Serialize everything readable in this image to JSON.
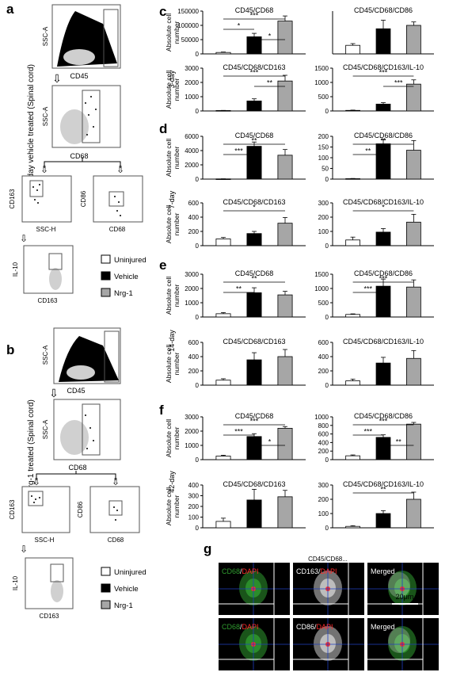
{
  "colors": {
    "uninjured": "#ffffff",
    "vehicle": "#000000",
    "nrg1": "#a6a6a6",
    "bar_stroke": "#000000",
    "green": "#2f9b2f",
    "red": "#ff2a2a",
    "crosshair": "#1f3fbf"
  },
  "panels": {
    "a": "a",
    "b": "b",
    "c": "c",
    "d": "d",
    "e": "e",
    "f": "f",
    "g": "g"
  },
  "side_labels": {
    "a": "42-day vehicle treated (Spinal cord)",
    "b": "42-day Nrg-1 treated (Spinal cord)"
  },
  "flow_labels": {
    "ssc_a": "SSC-A",
    "cd45": "CD45",
    "cd68": "CD68",
    "cd163": "CD163",
    "cd86": "CD86",
    "ssc_h": "SSC-H",
    "il10": "IL-10"
  },
  "legend": [
    {
      "name": "Uninjured",
      "color": "#ffffff"
    },
    {
      "name": "Vehicle",
      "color": "#000000"
    },
    {
      "name": "Nrg-1",
      "color": "#a6a6a6"
    }
  ],
  "row_labels": [
    "3-day",
    "7-day",
    "14-day",
    "42-day"
  ],
  "y_label": "Absolute cell number",
  "chart_data": [
    {
      "type": "bar",
      "row": "3-day",
      "title": "CD45/CD68",
      "categories": [
        "Uninjured",
        "Vehicle",
        "Nrg-1"
      ],
      "values": [
        5000,
        60000,
        115000
      ],
      "errors": [
        1500,
        12000,
        18000
      ],
      "ylim": [
        0,
        150000
      ],
      "yticks": [
        0,
        50000,
        100000,
        150000
      ],
      "sig": [
        {
          "a": 0,
          "b": 2,
          "stars": "***"
        },
        {
          "a": 0,
          "b": 1,
          "stars": "*"
        },
        {
          "a": 1,
          "b": 2,
          "stars": "*"
        }
      ]
    },
    {
      "type": "bar",
      "row": "3-day",
      "title": "CD45/CD68/CD86",
      "categories": [
        "Uninjured",
        "Vehicle",
        "Nrg-1"
      ],
      "values": [
        300,
        880,
        1000
      ],
      "errors": [
        60,
        300,
        120
      ],
      "ylim": [
        0,
        1500
      ],
      "yticks": [],
      "sig": []
    },
    {
      "type": "bar",
      "row": "3-day",
      "title": "CD45/CD68/CD163",
      "categories": [
        "Uninjured",
        "Vehicle",
        "Nrg-1"
      ],
      "values": [
        30,
        700,
        2100
      ],
      "errors": [
        10,
        150,
        400
      ],
      "ylim": [
        0,
        3000
      ],
      "yticks": [
        0,
        1000,
        2000,
        3000
      ],
      "sig": [
        {
          "a": 0,
          "b": 2,
          "stars": "***"
        },
        {
          "a": 1,
          "b": 2,
          "stars": "**"
        }
      ]
    },
    {
      "type": "bar",
      "row": "3-day",
      "title": "CD45/CD68/CD163/IL-10",
      "categories": [
        "Uninjured",
        "Vehicle",
        "Nrg-1"
      ],
      "values": [
        20,
        240,
        940
      ],
      "errors": [
        10,
        50,
        150
      ],
      "ylim": [
        0,
        1500
      ],
      "yticks": [
        0,
        500,
        1000,
        1500
      ],
      "sig": [
        {
          "a": 0,
          "b": 2,
          "stars": "***"
        },
        {
          "a": 1,
          "b": 2,
          "stars": "***"
        }
      ]
    },
    {
      "type": "bar",
      "row": "7-day",
      "title": "CD45/CD68",
      "categories": [
        "Uninjured",
        "Vehicle",
        "Nrg-1"
      ],
      "values": [
        30,
        4600,
        3350
      ],
      "errors": [
        10,
        600,
        800
      ],
      "ylim": [
        0,
        6000
      ],
      "yticks": [
        0,
        2000,
        4000,
        6000
      ],
      "sig": [
        {
          "a": 0,
          "b": 2,
          "stars": "**"
        },
        {
          "a": 0,
          "b": 1,
          "stars": "***"
        }
      ]
    },
    {
      "type": "bar",
      "row": "7-day",
      "title": "CD45/CD68/CD86",
      "categories": [
        "Uninjured",
        "Vehicle",
        "Nrg-1"
      ],
      "values": [
        2,
        165,
        135
      ],
      "errors": [
        1,
        20,
        45
      ],
      "ylim": [
        0,
        200
      ],
      "yticks": [
        0,
        50,
        100,
        150,
        200
      ],
      "sig": [
        {
          "a": 0,
          "b": 2,
          "stars": "**"
        },
        {
          "a": 0,
          "b": 1,
          "stars": "**"
        }
      ]
    },
    {
      "type": "bar",
      "row": "7-day",
      "title": "CD45/CD68/CD163",
      "categories": [
        "Uninjured",
        "Vehicle",
        "Nrg-1"
      ],
      "values": [
        95,
        170,
        315
      ],
      "errors": [
        20,
        30,
        80
      ],
      "ylim": [
        0,
        600
      ],
      "yticks": [
        0,
        200,
        400,
        600
      ],
      "sig": [
        {
          "a": 0,
          "b": 2,
          "stars": "*"
        }
      ]
    },
    {
      "type": "bar",
      "row": "7-day",
      "title": "CD45/CD68/CD163/IL-10",
      "categories": [
        "Uninjured",
        "Vehicle",
        "Nrg-1"
      ],
      "values": [
        40,
        95,
        165
      ],
      "errors": [
        20,
        25,
        55
      ],
      "ylim": [
        0,
        300
      ],
      "yticks": [
        0,
        100,
        200,
        300
      ],
      "sig": [
        {
          "a": 0,
          "b": 2,
          "stars": "*"
        }
      ]
    },
    {
      "type": "bar",
      "row": "14-day",
      "title": "CD45/CD68",
      "categories": [
        "Uninjured",
        "Vehicle",
        "Nrg-1"
      ],
      "values": [
        230,
        1700,
        1550
      ],
      "errors": [
        80,
        350,
        250
      ],
      "ylim": [
        0,
        3000
      ],
      "yticks": [
        0,
        1000,
        2000,
        3000
      ],
      "sig": [
        {
          "a": 0,
          "b": 2,
          "stars": "**"
        },
        {
          "a": 0,
          "b": 1,
          "stars": "**"
        }
      ]
    },
    {
      "type": "bar",
      "row": "14-day",
      "title": "CD45/CD68/CD86",
      "categories": [
        "Uninjured",
        "Vehicle",
        "Nrg-1"
      ],
      "values": [
        90,
        1080,
        1050
      ],
      "errors": [
        20,
        250,
        250
      ],
      "ylim": [
        0,
        1500
      ],
      "yticks": [
        0,
        500,
        1000,
        1500
      ],
      "sig": [
        {
          "a": 0,
          "b": 2,
          "stars": "***"
        },
        {
          "a": 0,
          "b": 1,
          "stars": "***"
        }
      ]
    },
    {
      "type": "bar",
      "row": "14-day",
      "title": "CD45/CD68/CD163",
      "categories": [
        "Uninjured",
        "Vehicle",
        "Nrg-1"
      ],
      "values": [
        70,
        355,
        400
      ],
      "errors": [
        20,
        100,
        100
      ],
      "ylim": [
        0,
        600
      ],
      "yticks": [
        0,
        200,
        400,
        600
      ],
      "sig": []
    },
    {
      "type": "bar",
      "row": "14-day",
      "title": "CD45/CD68/CD163/IL-10",
      "categories": [
        "Uninjured",
        "Vehicle",
        "Nrg-1"
      ],
      "values": [
        60,
        310,
        375
      ],
      "errors": [
        25,
        80,
        110
      ],
      "ylim": [
        0,
        600
      ],
      "yticks": [
        0,
        200,
        400,
        600
      ],
      "sig": []
    },
    {
      "type": "bar",
      "row": "42-day",
      "title": "CD45/CD68",
      "categories": [
        "Uninjured",
        "Vehicle",
        "Nrg-1"
      ],
      "values": [
        250,
        1620,
        2200
      ],
      "errors": [
        60,
        200,
        120
      ],
      "ylim": [
        0,
        3000
      ],
      "yticks": [
        0,
        1000,
        2000,
        3000
      ],
      "sig": [
        {
          "a": 0,
          "b": 2,
          "stars": "***"
        },
        {
          "a": 0,
          "b": 1,
          "stars": "***"
        },
        {
          "a": 1,
          "b": 2,
          "stars": "*"
        }
      ]
    },
    {
      "type": "bar",
      "row": "42-day",
      "title": "CD45/CD68/CD86",
      "categories": [
        "Uninjured",
        "Vehicle",
        "Nrg-1"
      ],
      "values": [
        90,
        520,
        830
      ],
      "errors": [
        20,
        60,
        40
      ],
      "ylim": [
        0,
        1000
      ],
      "yticks": [
        0,
        200,
        400,
        600,
        800,
        1000
      ],
      "sig": [
        {
          "a": 0,
          "b": 2,
          "stars": "***"
        },
        {
          "a": 0,
          "b": 1,
          "stars": "***"
        },
        {
          "a": 1,
          "b": 2,
          "stars": "**"
        }
      ]
    },
    {
      "type": "bar",
      "row": "42-day",
      "title": "CD45/CD68/CD163",
      "categories": [
        "Uninjured",
        "Vehicle",
        "Nrg-1"
      ],
      "values": [
        60,
        260,
        290
      ],
      "errors": [
        30,
        100,
        60
      ],
      "ylim": [
        0,
        400
      ],
      "yticks": [
        0,
        100,
        200,
        300,
        400
      ],
      "sig": []
    },
    {
      "type": "bar",
      "row": "42-day",
      "title": "CD45/CD68/CD163/IL-10",
      "categories": [
        "Uninjured",
        "Vehicle",
        "Nrg-1"
      ],
      "values": [
        10,
        100,
        200
      ],
      "errors": [
        5,
        20,
        50
      ],
      "ylim": [
        0,
        300
      ],
      "yticks": [
        0,
        100,
        200,
        300
      ],
      "sig": [
        {
          "a": 0,
          "b": 2,
          "stars": "**"
        }
      ]
    }
  ],
  "micro": {
    "header": "CD45/CD68...",
    "row1": [
      "CD68/DAPI",
      "CD163/DAPI",
      "Merged"
    ],
    "row2": [
      "CD68/DAPI",
      "CD86/DAPI",
      "Merged"
    ],
    "scale": "20μm"
  }
}
